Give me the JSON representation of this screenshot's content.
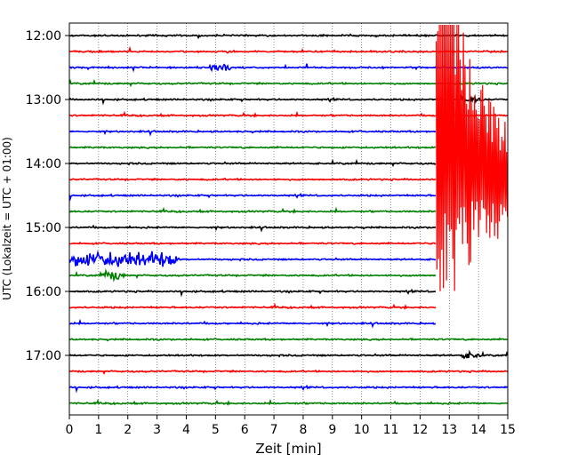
{
  "chart_data": {
    "type": "line",
    "subtype": "helicorder",
    "xlabel": "Zeit  [min]",
    "ylabel": "UTC (Lokalzeit = UTC + 01:00)",
    "xlim": [
      0,
      15
    ],
    "x_ticks": [
      0,
      1,
      2,
      3,
      4,
      5,
      6,
      7,
      8,
      9,
      10,
      11,
      12,
      13,
      14,
      15
    ],
    "x_tick_labels": [
      "0",
      "1",
      "2",
      "3",
      "4",
      "5",
      "6",
      "7",
      "8",
      "9",
      "10",
      "11",
      "12",
      "13",
      "14",
      "15"
    ],
    "y_tick_labels": [
      "12:00",
      "13:00",
      "14:00",
      "15:00",
      "16:00",
      "17:00"
    ],
    "y_tick_hours": [
      12,
      13,
      14,
      15,
      16,
      17
    ],
    "grid": "vertical dotted",
    "trace_start": "12:00",
    "trace_interval_min": 15,
    "trace_count": 24,
    "trace_colors": [
      "#000000",
      "#ff0000",
      "#0000ff",
      "#008000"
    ],
    "earthquake_onset_min": 12.55,
    "bursts": [
      {
        "trace": 2,
        "x_min": 4.9,
        "amp": 0.45
      },
      {
        "trace": 14,
        "x_min": 0.0,
        "x_end": 3.5,
        "amp": 0.7
      },
      {
        "trace": 15,
        "x_min": 1.2,
        "amp": 0.4
      },
      {
        "trace": 4,
        "x_min": 13.5,
        "amp": 0.3
      },
      {
        "trace": 20,
        "x_min": 13.5,
        "amp": 0.3
      }
    ]
  }
}
